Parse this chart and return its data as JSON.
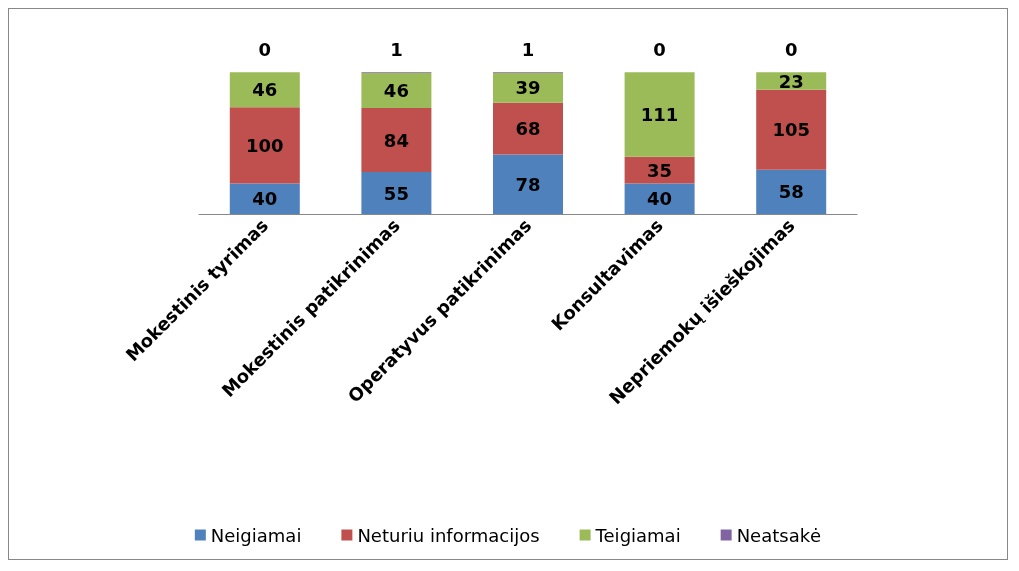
{
  "chart_data": {
    "type": "bar",
    "stacked": true,
    "data_labels": true,
    "legend": "bottom",
    "categories": [
      "Mokestinis tyrimas",
      "Mokestinis patikrinimas",
      "Operatyvus patikrinimas",
      "Konsultavimas",
      "Nepriemokų išieškojimas"
    ],
    "series": [
      {
        "name": "Neigiamai",
        "color": "#4f81bd",
        "values": [
          40,
          55,
          78,
          40,
          58
        ]
      },
      {
        "name": "Neturiu informacijos",
        "color": "#c0504d",
        "values": [
          100,
          84,
          68,
          35,
          105
        ]
      },
      {
        "name": "Teigiamai",
        "color": "#9bbb59",
        "values": [
          46,
          46,
          39,
          111,
          23
        ]
      },
      {
        "name": "Neatsakė",
        "color": "#8064a2",
        "values": [
          0,
          1,
          1,
          0,
          0
        ]
      }
    ]
  }
}
